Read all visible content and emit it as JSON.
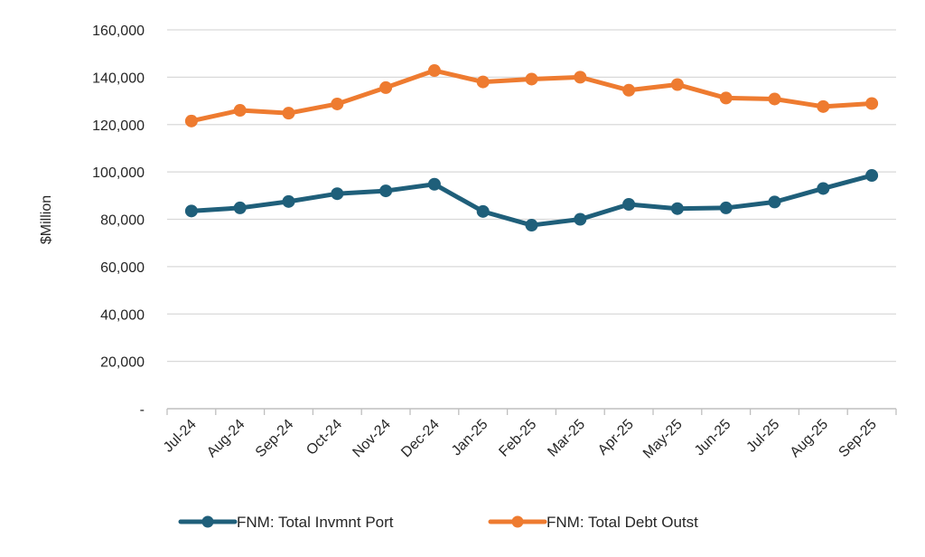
{
  "chart_data": {
    "type": "line",
    "title": "",
    "xlabel": "",
    "ylabel": "$Million",
    "ylim": [
      0,
      160000
    ],
    "yticks": [
      0,
      20000,
      40000,
      60000,
      80000,
      100000,
      120000,
      140000,
      160000
    ],
    "ytick_labels": [
      "-",
      "20,000",
      "40,000",
      "60,000",
      "80,000",
      "100,000",
      "120,000",
      "140,000",
      "160,000"
    ],
    "categories": [
      "Jul-24",
      "Aug-24",
      "Sep-24",
      "Oct-24",
      "Nov-24",
      "Dec-24",
      "Jan-25",
      "Feb-25",
      "Mar-25",
      "Apr-25",
      "May-25",
      "Jun-25",
      "Jul-25",
      "Aug-25",
      "Sep-25"
    ],
    "grid": true,
    "legend_position": "bottom",
    "series": [
      {
        "name": "FNM: Total Invmnt Port",
        "color": "#1f5f7a",
        "values": [
          83500,
          84800,
          87500,
          90800,
          92000,
          94800,
          83300,
          77500,
          80000,
          86300,
          84500,
          84800,
          87300,
          93000,
          98500
        ]
      },
      {
        "name": "FNM: Total Debt Outst",
        "color": "#ee7b30",
        "values": [
          121500,
          126000,
          124800,
          128700,
          135600,
          142800,
          138000,
          139200,
          140000,
          134500,
          136900,
          131200,
          130800,
          127600,
          128900
        ]
      }
    ]
  }
}
